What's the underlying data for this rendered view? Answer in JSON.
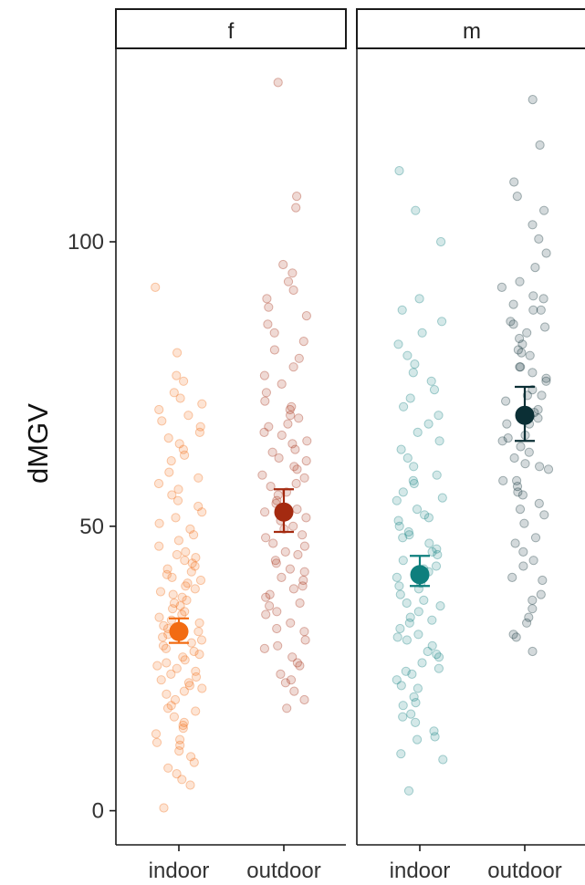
{
  "chart_data": {
    "type": "scatter",
    "subtype": "jittered strip plot with mean and error bars, faceted",
    "title": "",
    "ylabel": "dMGV",
    "xlabel": "",
    "ylim": [
      -6,
      134
    ],
    "yticks": [
      0,
      50,
      100
    ],
    "ytick_labels": [
      "0",
      "50",
      "100"
    ],
    "categories": [
      "indoor",
      "outdoor"
    ],
    "grid": false,
    "legend": "none",
    "facets": [
      {
        "label": "f",
        "groups": [
          {
            "category": "indoor",
            "color": "#f26b12",
            "mean": 31.5,
            "ci": [
              29.5,
              33.8
            ],
            "points": [
              0.5,
              4.5,
              5.5,
              6.5,
              7.5,
              8.5,
              9.5,
              10.5,
              11.5,
              12.5,
              13.5,
              14.5,
              15.5,
              16.5,
              17.5,
              18.5,
              19.5,
              20.5,
              21.5,
              22.5,
              23.5,
              24.5,
              25.5,
              26.5,
              27.5,
              28.5,
              29.5,
              30.5,
              31.5,
              32.5,
              33.5,
              34.5,
              35.5,
              36.5,
              37.5,
              38.5,
              39.5,
              40.5,
              41.5,
              42.5,
              43.5,
              44.5,
              45.5,
              46.5,
              47.5,
              48.5,
              49.5,
              50.5,
              51.5,
              52.5,
              53.5,
              54.5,
              55.5,
              56.5,
              57.5,
              58.5,
              59.5,
              61.5,
              62.5,
              63.5,
              64.5,
              65.5,
              66.5,
              67.5,
              68.5,
              69.5,
              70.5,
              71.5,
              72.5,
              73.5,
              75.5,
              76.5,
              80.5,
              92.0,
              22.0,
              24.0,
              26.0,
              28.0,
              30.0,
              32.0,
              34.0,
              36.0,
              38.0,
              40.0,
              42.0,
              44.0,
              21.0,
              23.0,
              25.0,
              27.0,
              29.0,
              31.0,
              33.0,
              35.0,
              37.0,
              39.0,
              41.0,
              43.0,
              45.0,
              18.0,
              15.0,
              12.0
            ]
          },
          {
            "category": "outdoor",
            "color": "#a42a10",
            "mean": 52.5,
            "ci": [
              49.0,
              56.5
            ],
            "points": [
              18.0,
              19.5,
              21.0,
              22.5,
              24.0,
              25.5,
              27.0,
              28.5,
              30.0,
              31.5,
              33.0,
              34.5,
              36.0,
              37.5,
              39.0,
              40.5,
              42.0,
              43.5,
              45.0,
              46.5,
              48.0,
              49.5,
              51.0,
              52.5,
              54.0,
              55.5,
              57.0,
              58.5,
              60.0,
              61.5,
              63.0,
              64.5,
              66.0,
              67.5,
              69.0,
              70.5,
              72.0,
              73.5,
              75.0,
              76.5,
              78.0,
              79.5,
              81.0,
              82.5,
              84.0,
              85.5,
              87.0,
              88.5,
              90.0,
              91.5,
              93.0,
              94.5,
              96.0,
              106.0,
              108.0,
              128.0,
              35.0,
              38.0,
              41.0,
              44.0,
              47.0,
              50.0,
              53.0,
              56.0,
              59.0,
              62.0,
              65.0,
              68.0,
              71.0,
              36.5,
              39.5,
              42.5,
              45.5,
              48.5,
              51.5,
              54.5,
              57.5,
              60.5,
              63.5,
              66.5,
              69.5,
              32.0,
              29.0,
              26.0,
              23.0
            ]
          }
        ]
      },
      {
        "label": "m",
        "groups": [
          {
            "category": "indoor",
            "color": "#0e7f7d",
            "mean": 41.5,
            "ci": [
              39.5,
              44.8
            ],
            "points": [
              3.5,
              9.0,
              10.0,
              12.5,
              14.0,
              15.5,
              17.0,
              18.5,
              20.0,
              21.5,
              23.0,
              24.5,
              26.0,
              27.5,
              29.0,
              30.5,
              32.0,
              33.5,
              35.0,
              36.5,
              38.0,
              39.5,
              41.0,
              42.5,
              44.0,
              45.5,
              47.0,
              48.5,
              50.0,
              51.5,
              53.0,
              54.5,
              56.0,
              57.5,
              59.0,
              60.5,
              62.0,
              63.5,
              65.0,
              66.5,
              68.0,
              69.5,
              71.0,
              72.5,
              74.0,
              75.5,
              77.0,
              78.5,
              80.0,
              82.0,
              84.0,
              86.0,
              88.0,
              90.0,
              100.0,
              105.5,
              112.5,
              22.0,
              25.0,
              28.0,
              31.0,
              34.0,
              37.0,
              40.0,
              43.0,
              46.0,
              49.0,
              52.0,
              55.0,
              58.0,
              24.0,
              27.0,
              30.0,
              33.0,
              36.0,
              39.0,
              42.0,
              45.0,
              48.0,
              51.0,
              19.0,
              16.5,
              13.0
            ]
          },
          {
            "category": "outdoor",
            "color": "#0b2f35",
            "mean": 69.5,
            "ci": [
              65.0,
              74.5
            ],
            "points": [
              28.0,
              30.5,
              33.0,
              35.5,
              38.0,
              40.5,
              43.0,
              45.5,
              48.0,
              50.5,
              53.0,
              55.5,
              58.0,
              60.5,
              63.0,
              65.5,
              68.0,
              70.5,
              73.0,
              75.5,
              78.0,
              80.5,
              83.0,
              85.5,
              88.0,
              90.5,
              93.0,
              95.5,
              98.0,
              100.5,
              103.0,
              105.5,
              108.0,
              110.5,
              117.0,
              125.0,
              52.0,
              56.0,
              60.0,
              64.0,
              68.0,
              72.0,
              76.0,
              80.0,
              84.0,
              88.0,
              92.0,
              54.0,
              58.0,
              62.0,
              66.0,
              70.0,
              74.0,
              78.0,
              82.0,
              86.0,
              90.0,
              57.0,
              61.0,
              65.0,
              69.0,
              73.0,
              77.0,
              81.0,
              85.0,
              89.0,
              44.0,
              47.0,
              41.0,
              37.0,
              34.0,
              31.0
            ]
          }
        ]
      }
    ]
  }
}
